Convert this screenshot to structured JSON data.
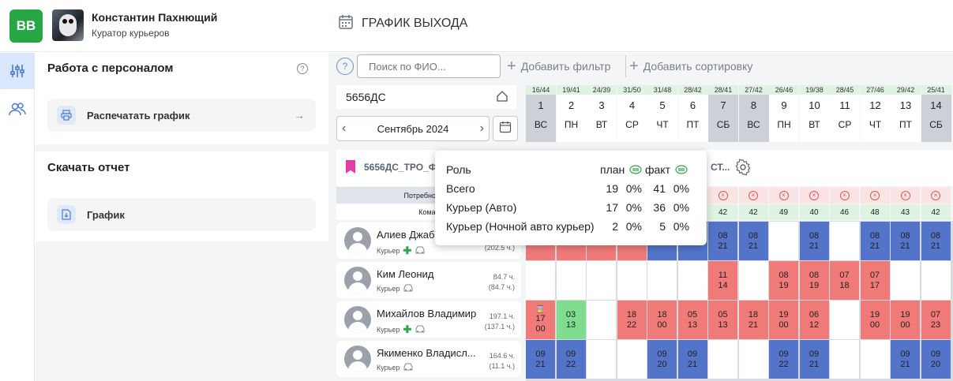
{
  "header": {
    "logo": "ВВ",
    "user_name": "Константин Пахнющий",
    "user_role": "Куратор курьеров",
    "page_title": "ГРАФИК ВЫХОДА"
  },
  "left_panel": {
    "section1_title": "Работа с персоналом",
    "print_button": "Распечатать график",
    "section2_title": "Скачать отчет",
    "report_button": "График"
  },
  "toolbar": {
    "help": "?",
    "search_placeholder": "Поиск по ФИО...",
    "add_filter": "Добавить фильтр",
    "add_sort": "Добавить сортировку"
  },
  "object": {
    "name": "5656ДС",
    "month": "Сентябрь 2024"
  },
  "days": [
    {
      "count": "16/44",
      "num": "1",
      "dow": "ВС",
      "weekend": true
    },
    {
      "count": "19/41",
      "num": "2",
      "dow": "ПН",
      "weekend": false
    },
    {
      "count": "24/39",
      "num": "3",
      "dow": "ВТ",
      "weekend": false
    },
    {
      "count": "31/50",
      "num": "4",
      "dow": "СР",
      "weekend": false
    },
    {
      "count": "31/48",
      "num": "5",
      "dow": "ЧТ",
      "weekend": false
    },
    {
      "count": "28/42",
      "num": "6",
      "dow": "ПТ",
      "weekend": false
    },
    {
      "count": "28/41",
      "num": "7",
      "dow": "СБ",
      "weekend": true
    },
    {
      "count": "27/42",
      "num": "8",
      "dow": "ВС",
      "weekend": true
    },
    {
      "count": "26/46",
      "num": "9",
      "dow": "ПН",
      "weekend": false
    },
    {
      "count": "19/38",
      "num": "10",
      "dow": "ВТ",
      "weekend": false
    },
    {
      "count": "28/45",
      "num": "11",
      "dow": "СР",
      "weekend": false
    },
    {
      "count": "27/46",
      "num": "12",
      "dow": "ЧТ",
      "weekend": false
    },
    {
      "count": "29/42",
      "num": "13",
      "dow": "ПТ",
      "weekend": false
    },
    {
      "count": "25/41",
      "num": "14",
      "dow": "СБ",
      "weekend": true
    }
  ],
  "team": {
    "name": "5656ДС_ТРО_Ф",
    "name_suffix": "СТ...",
    "needs_label": "Потребности и в",
    "team_label": "Команд",
    "team_counts": [
      "42",
      "42",
      "49",
      "40",
      "46",
      "48",
      "43",
      "42"
    ]
  },
  "popup": {
    "col_role": "Роль",
    "col_plan": "план",
    "col_fact": "факт",
    "rows": [
      {
        "role": "Всего",
        "plan": "19",
        "plan_pct": "0%",
        "fact": "41",
        "fact_pct": "0%"
      },
      {
        "role": "Курьер (Авто)",
        "plan": "17",
        "plan_pct": "0%",
        "fact": "36",
        "fact_pct": "0%"
      },
      {
        "role": "Курьер (Ночной авто курьер)",
        "plan": "2",
        "plan_pct": "0%",
        "fact": "5",
        "fact_pct": "0%"
      }
    ]
  },
  "employees": [
    {
      "name": "Алиев Джаб",
      "role": "Курьер",
      "hours1": "",
      "hours2": "(202.5 ч.)",
      "cells": [
        [
          "red",
          "",
          "21"
        ],
        [
          "red",
          "",
          "21"
        ],
        [
          "red",
          "",
          "21"
        ],
        [
          "red",
          "",
          "22"
        ],
        [
          "blue",
          "",
          "21"
        ],
        [
          "blue",
          "",
          "22"
        ],
        [
          "blue",
          "08",
          "21"
        ],
        [
          "blue",
          "08",
          "21"
        ],
        [
          "white",
          "",
          ""
        ],
        [
          "blue",
          "08",
          "21"
        ],
        [
          "white",
          "",
          ""
        ],
        [
          "blue",
          "08",
          "21"
        ],
        [
          "blue",
          "08",
          "21"
        ],
        [
          "blue",
          "08",
          "21"
        ]
      ]
    },
    {
      "name": "Ким Леонид",
      "role": "Курьер",
      "hours1": "84.7 ч.",
      "hours2": "(84.7 ч.)",
      "cells": [
        [
          "white",
          "",
          ""
        ],
        [
          "white",
          "",
          ""
        ],
        [
          "white",
          "",
          ""
        ],
        [
          "white",
          "",
          ""
        ],
        [
          "white",
          "",
          ""
        ],
        [
          "white",
          "",
          ""
        ],
        [
          "red",
          "11",
          "14"
        ],
        [
          "white",
          "",
          ""
        ],
        [
          "red",
          "08",
          "19"
        ],
        [
          "red",
          "08",
          "19"
        ],
        [
          "red",
          "07",
          "18"
        ],
        [
          "red",
          "07",
          "17"
        ],
        [
          "white",
          "",
          ""
        ],
        [
          "white",
          "",
          ""
        ]
      ]
    },
    {
      "name": "Михайлов Владимир",
      "role": "Курьер",
      "hours1": "197.1 ч.",
      "hours2": "(137.1 ч.)",
      "cells": [
        [
          "red",
          "17",
          "00"
        ],
        [
          "green",
          "03",
          "13"
        ],
        [
          "white",
          "",
          ""
        ],
        [
          "red",
          "18",
          "22"
        ],
        [
          "red",
          "18",
          "00"
        ],
        [
          "red",
          "05",
          "13"
        ],
        [
          "red",
          "05",
          "13"
        ],
        [
          "red",
          "18",
          "21"
        ],
        [
          "red",
          "19",
          "00"
        ],
        [
          "red",
          "06",
          "12"
        ],
        [
          "white",
          "",
          ""
        ],
        [
          "red",
          "19",
          "00"
        ],
        [
          "red",
          "19",
          "00"
        ],
        [
          "red",
          "07",
          "23"
        ]
      ]
    },
    {
      "name": "Якименко Владисл...",
      "role": "Курьер",
      "hours1": "164.6 ч.",
      "hours2": "(11.1 ч.)",
      "cells": [
        [
          "blue",
          "09",
          "21"
        ],
        [
          "blue",
          "09",
          "22"
        ],
        [
          "white",
          "",
          ""
        ],
        [
          "white",
          "",
          ""
        ],
        [
          "blue",
          "09",
          "20"
        ],
        [
          "blue",
          "09",
          "21"
        ],
        [
          "white",
          "",
          ""
        ],
        [
          "white",
          "",
          ""
        ],
        [
          "blue",
          "09",
          "22"
        ],
        [
          "blue",
          "09",
          "21"
        ],
        [
          "white",
          "",
          ""
        ],
        [
          "white",
          "",
          ""
        ],
        [
          "blue",
          "09",
          "21"
        ],
        [
          "blue",
          "09",
          "20"
        ]
      ]
    }
  ]
}
